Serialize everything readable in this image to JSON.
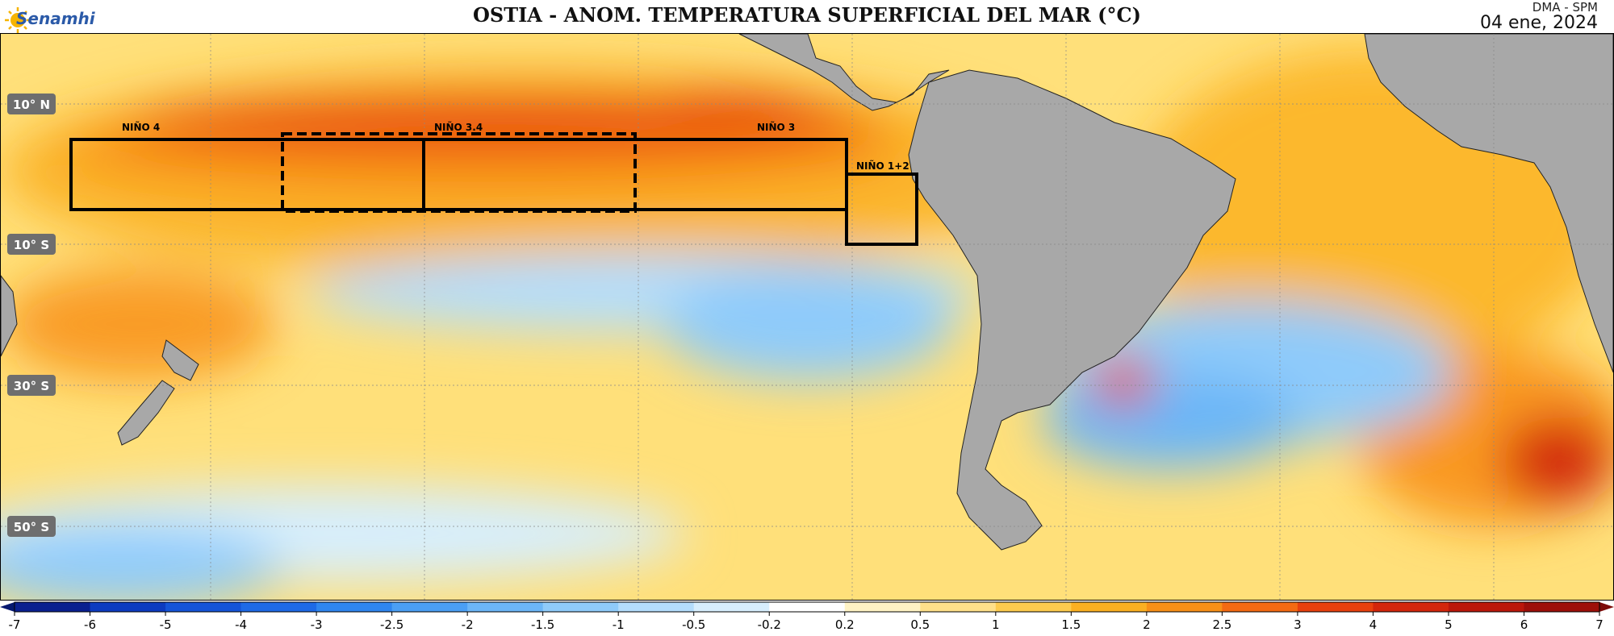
{
  "header": {
    "logo_text": "Senamhi",
    "title": "OSTIA - ANOM. TEMPERATURA SUPERFICIAL DEL MAR (°C)",
    "agency": "DMA - SPM",
    "date": "04 ene, 2024"
  },
  "latitude_labels": [
    "10° N",
    "10° S",
    "30° S",
    "50° S"
  ],
  "regions": [
    {
      "name": "NIÑO 4",
      "style": "solid"
    },
    {
      "name": "NIÑO 3.4",
      "style": "dashed"
    },
    {
      "name": "NIÑO 3",
      "style": "solid"
    },
    {
      "name": "NIÑO 1+2",
      "style": "solid"
    }
  ],
  "colorbar": {
    "ticks": [
      "-7",
      "-6",
      "-5",
      "-4",
      "-3",
      "-2.5",
      "-2",
      "-1.5",
      "-1",
      "-0.5",
      "-0.2",
      "0.2",
      "0.5",
      "1",
      "1.5",
      "2",
      "2.5",
      "3",
      "4",
      "5",
      "6",
      "7"
    ],
    "colors": [
      "#0a1f8f",
      "#0d3bc0",
      "#1554d8",
      "#1e6ae6",
      "#2f86ef",
      "#4b9ff4",
      "#6cb6f7",
      "#8fcbfa",
      "#b4ddfc",
      "#d7eefd",
      "#ffffff",
      "#fff3c4",
      "#ffe08a",
      "#fdcb4e",
      "#fbb022",
      "#f89018",
      "#f46a12",
      "#e8400e",
      "#d3260c",
      "#bb170b",
      "#9d0f0a"
    ],
    "low_arrow_color": "#051870",
    "high_arrow_color": "#7d0a08"
  },
  "colors": {
    "land": "#a8a8a8",
    "ocean_base": "#ffe07a",
    "warm_core": "#e64a14",
    "cool_band": "#a8d8f8"
  }
}
